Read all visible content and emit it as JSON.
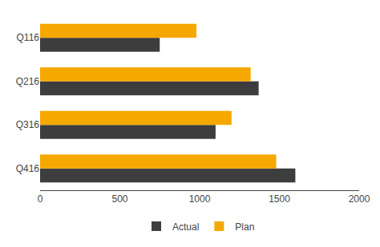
{
  "chart_data": {
    "type": "bar",
    "orientation": "horizontal",
    "categories": [
      "Q116",
      "Q216",
      "Q316",
      "Q416"
    ],
    "series": [
      {
        "name": "Actual",
        "color": "#3d3d3d",
        "values": [
          750,
          1370,
          1100,
          1600
        ]
      },
      {
        "name": "Plan",
        "color": "#f5a800",
        "values": [
          980,
          1320,
          1200,
          1480
        ]
      }
    ],
    "xlim": [
      0,
      2000
    ],
    "xticks": [
      0,
      500,
      1000,
      1500,
      2000
    ],
    "grid": false,
    "legend": "bottom"
  }
}
